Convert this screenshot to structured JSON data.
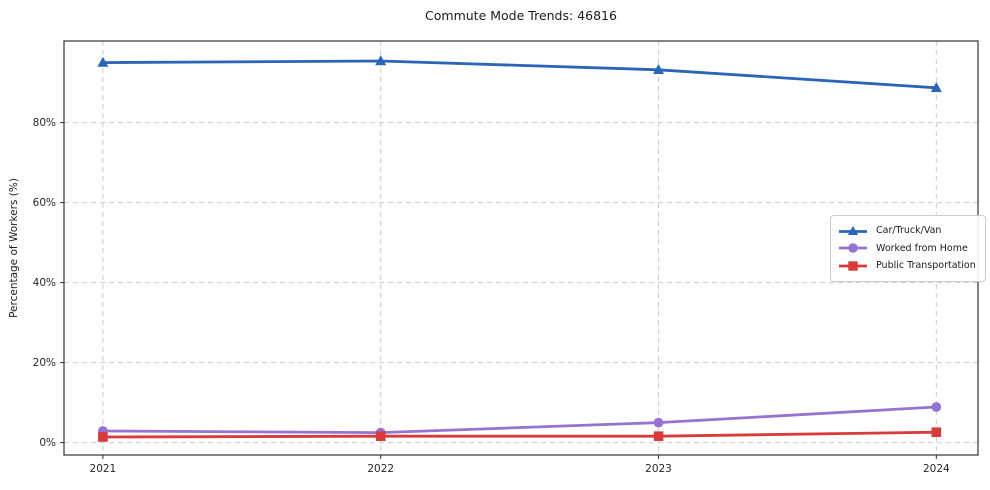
{
  "chart_data": {
    "type": "line",
    "title": "Commute Mode Trends: 46816",
    "xlabel": "",
    "ylabel": "Percentage of Workers (%)",
    "x": [
      2021,
      2022,
      2023,
      2024
    ],
    "x_tick_labels": [
      "2021",
      "2022",
      "2023",
      "2024"
    ],
    "y_ticks": [
      0,
      20,
      40,
      60,
      80
    ],
    "y_tick_labels": [
      "0%",
      "20%",
      "40%",
      "60%",
      "80%"
    ],
    "xlim": [
      2020.86,
      2024.15
    ],
    "ylim": [
      -3.1,
      100.4
    ],
    "grid": true,
    "grid_style": "dashed",
    "legend_position": "center-right",
    "series": [
      {
        "name": "Car/Truck/Van",
        "color": "#2b65b8",
        "marker": "triangle",
        "values": [
          95.0,
          95.4,
          93.2,
          88.7
        ]
      },
      {
        "name": "Worked from Home",
        "color": "#9673d2",
        "marker": "circle",
        "values": [
          2.9,
          2.5,
          5.0,
          8.9
        ]
      },
      {
        "name": "Public Transportation",
        "color": "#d93b3b",
        "marker": "square",
        "values": [
          1.4,
          1.6,
          1.6,
          2.6
        ]
      }
    ],
    "colors": {
      "grid": "#cccccc",
      "spine": "#333333",
      "tick_label": "#262626",
      "title": "#1a1a1a",
      "legend_border": "#cccccc",
      "background": "#ffffff"
    }
  }
}
